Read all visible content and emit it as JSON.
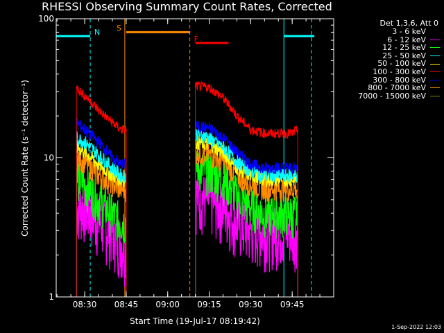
{
  "title": "RHESSI Observing Summary Count Rates, Corrected",
  "timestamp": "1-Sep-2022 12:03",
  "legend": {
    "header": "Det 1,3,6, Att 0",
    "items": [
      {
        "label": "3 - 6 keV",
        "color": "#000000"
      },
      {
        "label": "6 - 12 keV",
        "color": "#ff00ff"
      },
      {
        "label": "12 - 25 keV",
        "color": "#00ff00"
      },
      {
        "label": "25 - 50 keV",
        "color": "#00ffff"
      },
      {
        "label": "50 - 100 keV",
        "color": "#ffff00"
      },
      {
        "label": "100 - 300 keV",
        "color": "#ff0000"
      },
      {
        "label": "300 - 800 keV",
        "color": "#0000ff"
      },
      {
        "label": "800 - 7000 keV",
        "color": "#ff8c00"
      },
      {
        "label": "7000 - 15000 keV",
        "color": "#8b8b00"
      }
    ]
  },
  "chart_data": {
    "type": "line",
    "title": "RHESSI Observing Summary Count Rates, Corrected",
    "xlabel": "Start Time (19-Jul-17 08:19:42)",
    "ylabel": "Corrected Count Rate (s⁻¹ detector⁻¹)",
    "yscale": "log",
    "ylim": [
      1,
      100
    ],
    "xlim": [
      "08:19:42",
      "10:00:00"
    ],
    "x_ticks": [
      "08:30",
      "08:45",
      "09:00",
      "09:15",
      "09:30",
      "09:45"
    ],
    "y_ticks": [
      "1",
      "10",
      "100"
    ],
    "annotations": [
      {
        "label": "N",
        "color": "#00ffff",
        "time": "08:32"
      },
      {
        "label": "S",
        "color": "#ff8c00",
        "time": "08:45"
      },
      {
        "label": "F",
        "color": "#ff0000",
        "time": "09:08"
      }
    ],
    "bars": [
      {
        "name": "night",
        "color": "#00ffff",
        "level": 75,
        "spans": [
          [
            "08:19:42",
            "08:32"
          ],
          [
            "09:42",
            "09:53"
          ]
        ]
      },
      {
        "name": "saa",
        "color": "#ff8c00",
        "level": 80,
        "spans": [
          [
            "08:45",
            "09:08"
          ]
        ]
      },
      {
        "name": "flare",
        "color": "#ff0000",
        "level": 67,
        "spans": [
          [
            "09:10",
            "09:22"
          ]
        ]
      }
    ],
    "markers": [
      {
        "color": "#00ffff",
        "style": "solid",
        "time": "08:19:42"
      },
      {
        "color": "#00ffff",
        "style": "dashed",
        "time": "08:32"
      },
      {
        "color": "#ff8c00",
        "style": "solid",
        "time": "08:44:30"
      },
      {
        "color": "#ff8c00",
        "style": "dashed",
        "time": "09:08"
      },
      {
        "color": "#00ffff",
        "style": "solid",
        "time": "09:42"
      },
      {
        "color": "#00ffff",
        "style": "dashed",
        "time": "09:52"
      }
    ],
    "series": [
      {
        "name": "6 - 12 keV",
        "color": "#ff00ff",
        "noise": 0.5,
        "segments": [
          {
            "x": [
              "08:27",
              "08:30",
              "08:35",
              "08:40",
              "08:43",
              "08:45"
            ],
            "y": [
              4.5,
              4.5,
              3.5,
              3.0,
              2.5,
              2.3
            ]
          },
          {
            "x": [
              "09:10",
              "09:15",
              "09:20",
              "09:25",
              "09:30",
              "09:35",
              "09:40",
              "09:45",
              "09:47"
            ],
            "y": [
              5.5,
              5.0,
              4.5,
              3.5,
              3.0,
              3.0,
              3.0,
              3.0,
              3.0
            ]
          }
        ]
      },
      {
        "name": "12 - 25 keV",
        "color": "#00ff00",
        "noise": 0.35,
        "segments": [
          {
            "x": [
              "08:27",
              "08:30",
              "08:35",
              "08:40",
              "08:43",
              "08:45"
            ],
            "y": [
              7.0,
              6.5,
              5.0,
              4.0,
              3.5,
              3.5
            ]
          },
          {
            "x": [
              "09:10",
              "09:15",
              "09:20",
              "09:25",
              "09:30",
              "09:35",
              "09:40",
              "09:45",
              "09:47"
            ],
            "y": [
              8.5,
              8.0,
              7.0,
              5.5,
              4.5,
              4.0,
              4.0,
              4.0,
              4.0
            ]
          }
        ]
      },
      {
        "name": "800 - 7000 keV",
        "color": "#ff8c00",
        "noise": 0.2,
        "segments": [
          {
            "x": [
              "08:27",
              "08:30",
              "08:35",
              "08:40",
              "08:43",
              "08:45"
            ],
            "y": [
              10.0,
              9.5,
              7.5,
              6.5,
              6.0,
              6.0
            ]
          },
          {
            "x": [
              "09:10",
              "09:15",
              "09:20",
              "09:25",
              "09:30",
              "09:35",
              "09:40",
              "09:45",
              "09:47"
            ],
            "y": [
              11.0,
              10.5,
              9.5,
              7.5,
              6.5,
              6.0,
              6.0,
              6.0,
              6.0
            ]
          }
        ]
      },
      {
        "name": "50 - 100 keV",
        "color": "#ffff00",
        "noise": 0.12,
        "segments": [
          {
            "x": [
              "08:27",
              "08:30",
              "08:35",
              "08:40",
              "08:43",
              "08:45"
            ],
            "y": [
              12.0,
              11.0,
              9.0,
              7.5,
              7.0,
              7.0
            ]
          },
          {
            "x": [
              "09:10",
              "09:15",
              "09:20",
              "09:25",
              "09:30",
              "09:35",
              "09:40",
              "09:45",
              "09:47"
            ],
            "y": [
              13.0,
              12.5,
              11.0,
              8.5,
              7.5,
              7.0,
              7.0,
              7.0,
              7.0
            ]
          }
        ]
      },
      {
        "name": "25 - 50 keV",
        "color": "#00ffff",
        "noise": 0.12,
        "segments": [
          {
            "x": [
              "08:27",
              "08:30",
              "08:35",
              "08:40",
              "08:43",
              "08:45"
            ],
            "y": [
              14.0,
              13.0,
              10.5,
              8.5,
              7.5,
              7.5
            ]
          },
          {
            "x": [
              "09:10",
              "09:15",
              "09:20",
              "09:25",
              "09:30",
              "09:35",
              "09:40",
              "09:45",
              "09:47"
            ],
            "y": [
              15.0,
              14.0,
              12.0,
              9.5,
              8.0,
              7.5,
              7.5,
              7.5,
              7.5
            ]
          }
        ]
      },
      {
        "name": "300 - 800 keV",
        "color": "#0000ff",
        "noise": 0.1,
        "segments": [
          {
            "x": [
              "08:27",
              "08:30",
              "08:35",
              "08:40",
              "08:43",
              "08:45"
            ],
            "y": [
              18.0,
              16.0,
              13.0,
              10.0,
              9.0,
              9.0
            ]
          },
          {
            "x": [
              "09:10",
              "09:15",
              "09:20",
              "09:25",
              "09:30",
              "09:35",
              "09:40",
              "09:45",
              "09:47"
            ],
            "y": [
              17.0,
              16.5,
              14.0,
              11.0,
              9.0,
              8.5,
              8.5,
              8.5,
              8.5
            ]
          }
        ]
      },
      {
        "name": "100 - 300 keV",
        "color": "#ff0000",
        "noise": 0.08,
        "segments": [
          {
            "x": [
              "08:27",
              "08:30",
              "08:35",
              "08:40",
              "08:43",
              "08:45"
            ],
            "y": [
              32.0,
              28.0,
              22.0,
              18.0,
              16.0,
              16.0
            ]
          },
          {
            "x": [
              "09:10",
              "09:15",
              "09:20",
              "09:25",
              "09:30",
              "09:35",
              "09:40",
              "09:45",
              "09:47"
            ],
            "y": [
              33.0,
              32.0,
              27.0,
              20.0,
              16.0,
              15.0,
              15.0,
              15.0,
              16.0
            ]
          }
        ]
      }
    ]
  }
}
